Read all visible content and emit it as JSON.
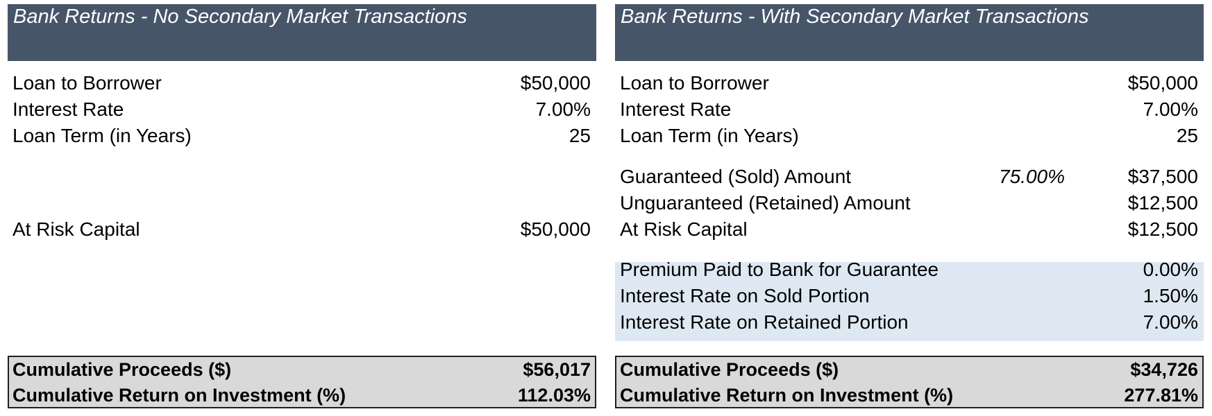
{
  "left": {
    "title": "Bank Returns - No Secondary Market Transactions",
    "loan_label": "Loan to Borrower",
    "loan_value": "$50,000",
    "rate_label": "Interest Rate",
    "rate_value": "7.00%",
    "term_label": "Loan Term (in Years)",
    "term_value": "25",
    "risk_label": "At Risk Capital",
    "risk_value": "$50,000",
    "proceeds_label": "Cumulative Proceeds ($)",
    "proceeds_value": "$56,017",
    "roi_label": "Cumulative Return on Investment (%)",
    "roi_value": "112.03%"
  },
  "right": {
    "title": "Bank Returns - With Secondary Market Transactions",
    "loan_label": "Loan to Borrower",
    "loan_value": "$50,000",
    "rate_label": "Interest Rate",
    "rate_value": "7.00%",
    "term_label": "Loan Term (in Years)",
    "term_value": "25",
    "guaranteed_label": "Guaranteed (Sold) Amount",
    "guaranteed_pct": "75.00%",
    "guaranteed_value": "$37,500",
    "unguaranteed_label": "Unguaranteed (Retained) Amount",
    "unguaranteed_value": "$12,500",
    "risk_label": "At Risk Capital",
    "risk_value": "$12,500",
    "premium_label": "Premium Paid to Bank for Guarantee",
    "premium_value": "0.00%",
    "sold_rate_label": "Interest Rate on Sold Portion",
    "sold_rate_value": "1.50%",
    "retained_rate_label": "Interest Rate on Retained Portion",
    "retained_rate_value": "7.00%",
    "proceeds_label": "Cumulative Proceeds ($)",
    "proceeds_value": "$34,726",
    "roi_label": "Cumulative Return on Investment (%)",
    "roi_value": "277.81%"
  },
  "colors": {
    "header_bg": "#475569",
    "shaded_bg": "#dee8f3",
    "summary_bg": "#d9d9d9"
  }
}
